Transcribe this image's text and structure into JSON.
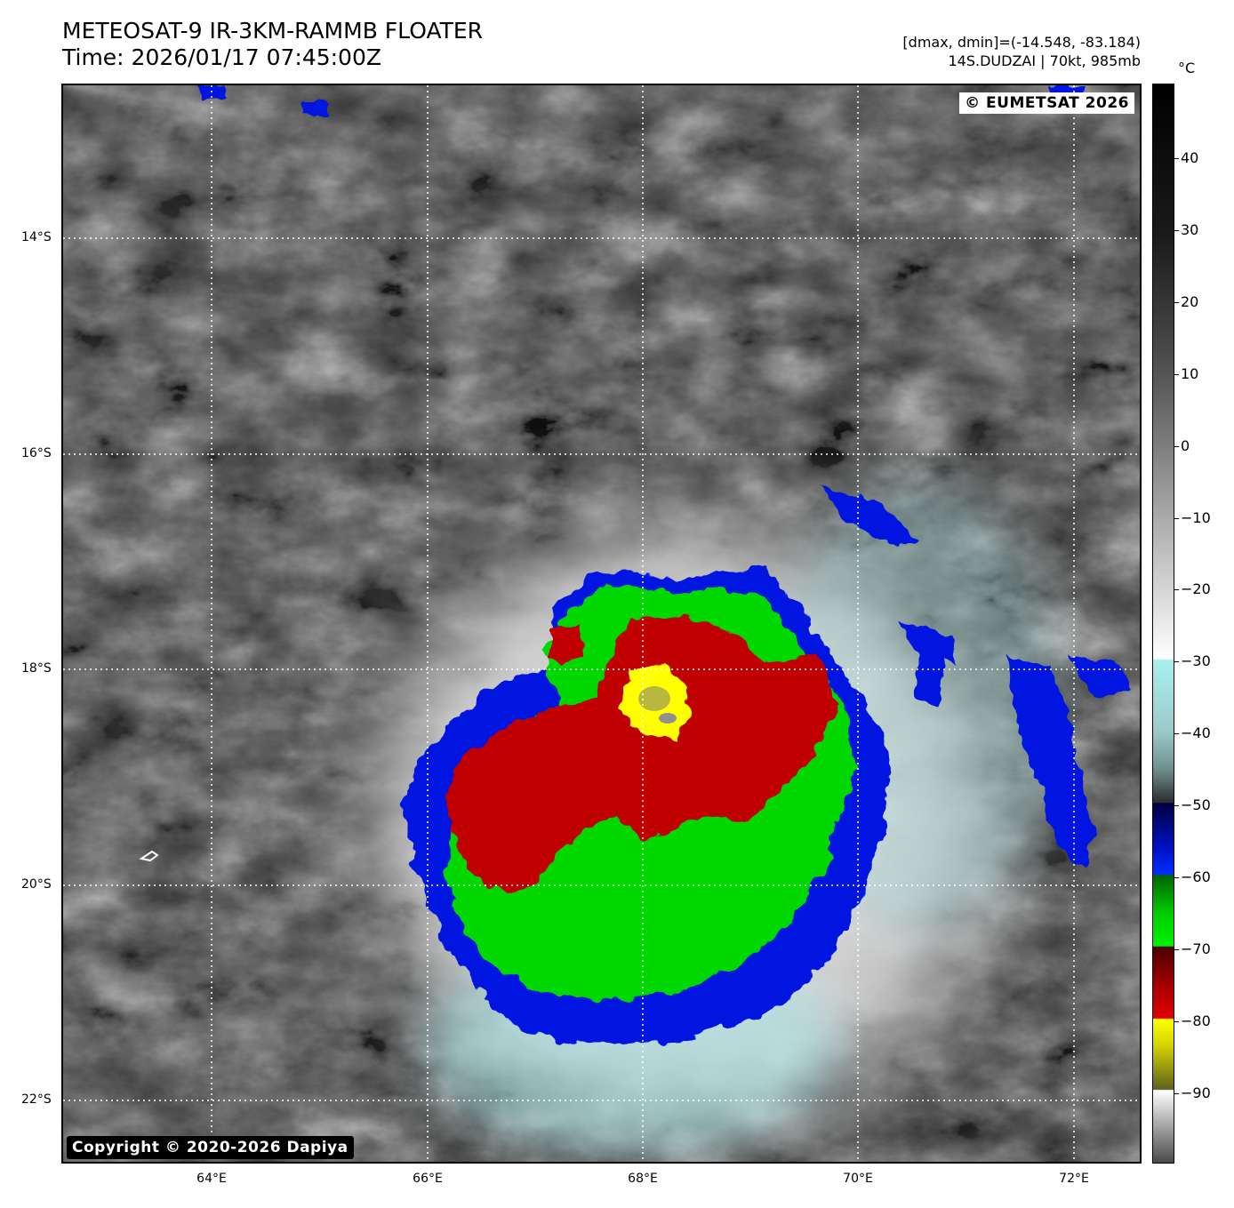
{
  "header": {
    "title_line1": "METEOSAT-9 IR-3KM-RAMMB FLOATER",
    "title_line2": "Time: 2026/01/17 07:45:00Z",
    "info_line1": "[dmax, dmin]=(-14.548, -83.184)",
    "info_line2": "14S.DUDZAI | 70kt, 985mb"
  },
  "map": {
    "watermark": "© EUMETSAT 2026",
    "copyright": "Copyright © 2020-2026 Dapiya",
    "lat_labels": [
      "14°S",
      "16°S",
      "18°S",
      "20°S",
      "22°S"
    ],
    "lon_labels": [
      "64°E",
      "66°E",
      "68°E",
      "70°E",
      "72°E"
    ],
    "gridline_style": "dotted white"
  },
  "colorbar": {
    "unit": "°C",
    "ticks": [
      "40",
      "30",
      "20",
      "10",
      "0",
      "−10",
      "−20",
      "−30",
      "−40",
      "−50",
      "−60",
      "−70",
      "−80",
      "−90"
    ],
    "colors": {
      "warm": "#000000",
      "neutral": "#ffffff",
      "cyan": "#a8f0f0",
      "blue": "#0018e0",
      "green": "#00d800",
      "red": "#c00000",
      "yellow": "#ffff00"
    }
  }
}
